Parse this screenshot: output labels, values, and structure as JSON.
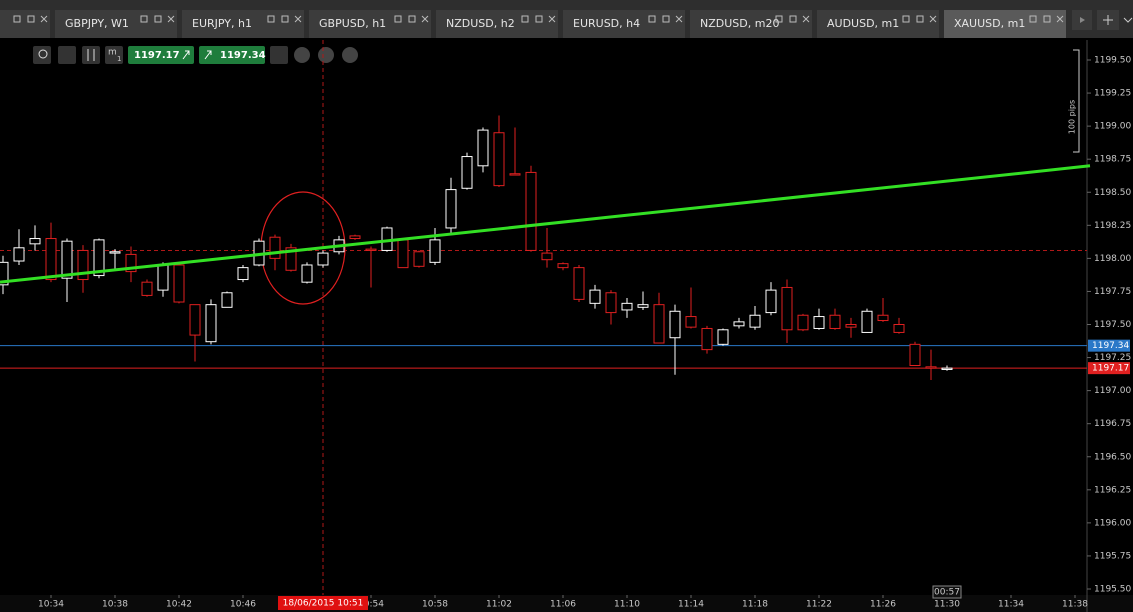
{
  "tabs": [
    "GBPJPY, W1",
    "EURJPY, h1",
    "GBPUSD, h1",
    "NZDUSD, h2",
    "EURUSD, h4",
    "NZDUSD, m20",
    "AUDUSD, m1",
    "XAUUSD, m1"
  ],
  "active_tab": "XAUUSD, m1",
  "toolbar": {
    "timeframe": "m",
    "timeframe_sub": "1"
  },
  "chart_data": {
    "type": "candlestick",
    "up_color": "#ffffff",
    "down_color": "#e02020",
    "categories": [
      null,
      null,
      null,
      "10:34",
      null,
      null,
      null,
      "10:38",
      null,
      null,
      null,
      "10:42",
      null,
      null,
      null,
      "10:46",
      null,
      null,
      null,
      null,
      null,
      null,
      null,
      "10:54",
      null,
      null,
      null,
      "10:58",
      null,
      null,
      null,
      "11:02",
      null,
      null,
      null,
      "11:06",
      null,
      null,
      null,
      "11:10",
      null,
      null,
      null,
      "11:14",
      null,
      null,
      null,
      "11:18",
      null,
      null,
      null,
      "11:22",
      null,
      null,
      null,
      "11:26",
      null,
      null,
      null,
      "11:30",
      null,
      null,
      null,
      "11:34",
      null,
      null,
      null,
      "11:38"
    ],
    "open": [
      1197.8,
      1197.98,
      1198.11,
      1198.15,
      1197.85,
      1198.06,
      1197.87,
      1198.04,
      1198.03,
      1197.82,
      1197.76,
      1197.95,
      1197.65,
      1197.37,
      1197.63,
      1197.84,
      1197.95,
      1198.16,
      1198.08,
      1197.82,
      1197.95,
      1198.05,
      1198.17,
      1198.07,
      1198.06,
      1198.14,
      1198.05,
      1197.97,
      1198.23,
      1198.53,
      1198.7,
      1198.95,
      1198.64,
      1198.65,
      1198.04,
      1197.96,
      1197.93,
      1197.66,
      1197.74,
      1197.61,
      1197.63,
      1197.65,
      1197.4,
      1197.56,
      1197.47,
      1197.35,
      1197.49,
      1197.48,
      1197.59,
      1197.78,
      1197.57,
      1197.47,
      1197.57,
      1197.5,
      1197.44,
      1197.57,
      1197.5,
      1197.35,
      1197.18,
      1197.16,
      null,
      null,
      null,
      null,
      null,
      null,
      null,
      null
    ],
    "high": [
      1198.02,
      1198.22,
      1198.25,
      1198.27,
      1198.15,
      1198.1,
      1198.15,
      1198.07,
      1198.09,
      1197.84,
      1197.97,
      1197.97,
      1197.65,
      1197.69,
      1197.75,
      1197.95,
      1198.15,
      1198.18,
      1198.11,
      1197.97,
      1198.06,
      1198.17,
      1198.18,
      1198.09,
      1198.24,
      1198.15,
      1198.06,
      1198.23,
      1198.61,
      1198.8,
      1198.99,
      1199.08,
      1198.99,
      1198.7,
      1198.23,
      1197.97,
      1197.95,
      1197.8,
      1197.76,
      1197.7,
      1197.75,
      1197.74,
      1197.65,
      1197.78,
      1197.49,
      1197.47,
      1197.55,
      1197.64,
      1197.82,
      1197.84,
      1197.58,
      1197.62,
      1197.62,
      1197.55,
      1197.62,
      1197.7,
      1197.55,
      1197.37,
      1197.31,
      1197.19,
      null,
      null,
      null,
      null,
      null,
      null,
      null,
      null
    ],
    "low": [
      1197.73,
      1197.95,
      1198.06,
      1197.82,
      1197.67,
      1197.74,
      1197.85,
      1197.92,
      1197.82,
      1197.71,
      1197.71,
      1197.66,
      1197.22,
      1197.35,
      1197.63,
      1197.82,
      1197.94,
      1197.91,
      1197.9,
      1197.81,
      1197.93,
      1198.03,
      1198.14,
      1197.78,
      1198.05,
      1197.93,
      1197.93,
      1197.95,
      1198.18,
      1198.52,
      1198.65,
      1198.54,
      1198.63,
      1198.05,
      1197.93,
      1197.91,
      1197.67,
      1197.62,
      1197.5,
      1197.55,
      1197.61,
      1197.36,
      1197.12,
      1197.47,
      1197.28,
      1197.34,
      1197.47,
      1197.46,
      1197.57,
      1197.36,
      1197.45,
      1197.46,
      1197.46,
      1197.4,
      1197.44,
      1197.52,
      1197.43,
      1197.19,
      1197.08,
      1197.15,
      null,
      null,
      null,
      null,
      null,
      null,
      null,
      null
    ],
    "close": [
      1197.97,
      1198.08,
      1198.15,
      1197.84,
      1198.13,
      1197.84,
      1198.14,
      1198.05,
      1197.9,
      1197.72,
      1197.95,
      1197.67,
      1197.42,
      1197.65,
      1197.74,
      1197.93,
      1198.13,
      1198.0,
      1197.91,
      1197.95,
      1198.04,
      1198.14,
      1198.15,
      1198.06,
      1198.23,
      1197.93,
      1197.94,
      1198.14,
      1198.52,
      1198.77,
      1198.97,
      1198.55,
      1198.63,
      1198.06,
      1197.99,
      1197.93,
      1197.69,
      1197.76,
      1197.59,
      1197.66,
      1197.65,
      1197.36,
      1197.6,
      1197.48,
      1197.31,
      1197.46,
      1197.52,
      1197.57,
      1197.76,
      1197.46,
      1197.46,
      1197.56,
      1197.47,
      1197.48,
      1197.6,
      1197.53,
      1197.44,
      1197.19,
      1197.17,
      1197.17,
      null,
      null,
      null,
      null,
      null,
      null,
      null,
      null
    ],
    "ylim": [
      1195.5,
      1199.5
    ],
    "yticks": [
      {
        "value": 1195.5,
        "label": "1195.50"
      },
      {
        "value": 1195.75,
        "label": "1195.75"
      },
      {
        "value": 1196,
        "label": "1196.00"
      },
      {
        "value": 1196.25,
        "label": "1196.25"
      },
      {
        "value": 1196.5,
        "label": "1196.50"
      },
      {
        "value": 1196.75,
        "label": "1196.75"
      },
      {
        "value": 1197,
        "label": "1197.00"
      },
      {
        "value": 1197.25,
        "label": "1197.25"
      },
      {
        "value": 1197.5,
        "label": "1197.50"
      },
      {
        "value": 1197.75,
        "label": "1197.75"
      },
      {
        "value": 1198,
        "label": "1198.00"
      },
      {
        "value": 1198.25,
        "label": "1198.25"
      },
      {
        "value": 1198.5,
        "label": "1198.50"
      },
      {
        "value": 1198.75,
        "label": "1198.75"
      },
      {
        "value": 1199,
        "label": "1199.00"
      },
      {
        "value": 1199.25,
        "label": "1199.25"
      },
      {
        "value": 1199.5,
        "label": "1199.50"
      }
    ],
    "bid": {
      "value": 1197.17,
      "color": "#e02020"
    },
    "ask": {
      "value": 1197.34,
      "color": "#2a78c8"
    },
    "trendline": {
      "start": 1197.82,
      "end": 1198.7,
      "color": "#33e024"
    },
    "crosshair": {
      "label": "18/06/2015 10:51",
      "price": 1198.06
    },
    "ruler_label": "100 pips",
    "timer": "00:57"
  }
}
